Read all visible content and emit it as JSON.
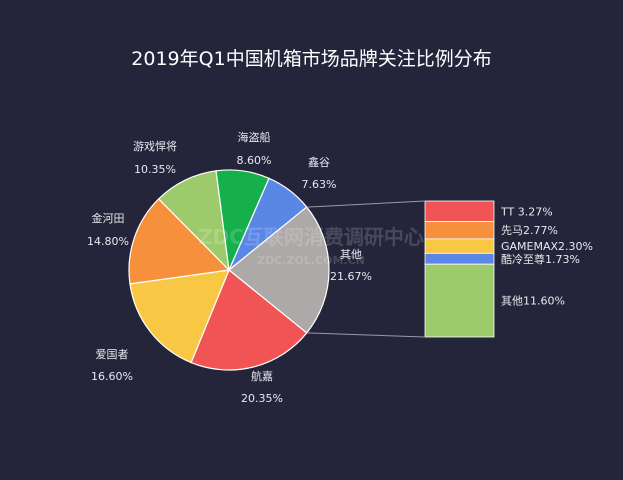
{
  "watermark": {
    "main": "ZDC互联网消费调研中心",
    "sub": "ZDC.ZOL.COM.CN"
  },
  "chart_data": {
    "type": "pie",
    "title": "2019年Q1中国机箱市场品牌关注比例分布",
    "slices": [
      {
        "name": "鑫谷",
        "value": 7.63,
        "label": "7.63%",
        "color": "#5a87e6"
      },
      {
        "name": "其他",
        "value": 21.67,
        "label": "21.67%",
        "color": "#ada9a8"
      },
      {
        "name": "航嘉",
        "value": 20.35,
        "label": "20.35%",
        "color": "#f05454"
      },
      {
        "name": "爱国者",
        "value": 16.6,
        "label": "16.60%",
        "color": "#f8c845"
      },
      {
        "name": "金河田",
        "value": 14.8,
        "label": "14.80%",
        "color": "#f6903d"
      },
      {
        "name": "游戏悍将",
        "value": 10.35,
        "label": "10.35%",
        "color": "#9dcb6b"
      },
      {
        "name": "海盗船",
        "value": 8.6,
        "label": "8.60%",
        "color": "#15b04b"
      }
    ],
    "breakdown": {
      "of": "其他",
      "items": [
        {
          "name": "TT",
          "value": 3.27,
          "label": "TT  3.27%",
          "color": "#f05454"
        },
        {
          "name": "先马",
          "value": 2.77,
          "label": "先马2.77%",
          "color": "#f6903d"
        },
        {
          "name": "GAMEMAX",
          "value": 2.3,
          "label": "GAMEMAX2.30%",
          "color": "#f8c845"
        },
        {
          "name": "酷冷至尊",
          "value": 1.73,
          "label": "酷冷至尊1.73%",
          "color": "#5a87e6"
        },
        {
          "name": "其他",
          "value": 11.6,
          "label": "其他11.60%",
          "color": "#9dcb6b"
        }
      ]
    }
  }
}
